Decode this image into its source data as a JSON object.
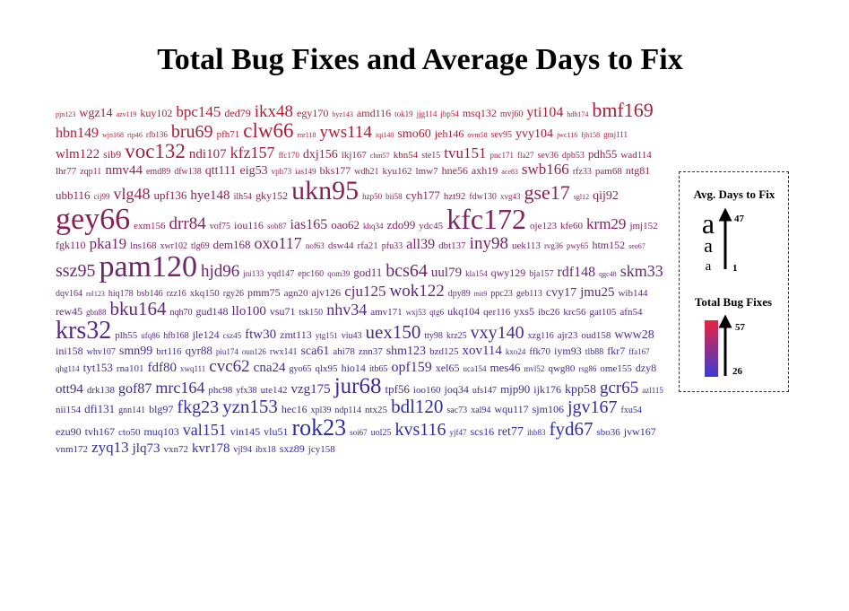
{
  "chart_data": {
    "type": "word-cloud",
    "title": "Total Bug Fixes and Average Days to Fix",
    "size_encoding": "Avg. Days to Fix",
    "color_encoding": "Total Bug Fixes",
    "size_range": [
      1,
      47
    ],
    "color_range": [
      26,
      57
    ],
    "color_low": "#3b3bd6",
    "color_high": "#e8233f",
    "legend_size_label": "Avg. Days to Fix",
    "legend_color_label": "Total Bug Fixes",
    "legend_size_max": "47",
    "legend_size_min": "1",
    "legend_color_max": "57",
    "legend_color_min": "26",
    "legend_glyph": "a",
    "legend_position": "right",
    "words": [
      [
        "pjn123",
        8,
        57
      ],
      [
        "wgz14",
        14,
        57
      ],
      [
        "azv119",
        8,
        57
      ],
      [
        "kuy102",
        12,
        57
      ],
      [
        "bpc145",
        17,
        57
      ],
      [
        "ded79",
        12,
        57
      ],
      [
        "ikx48",
        19,
        57
      ],
      [
        "egy170",
        12,
        57
      ],
      [
        "byz143",
        8,
        57
      ],
      [
        "amd116",
        12,
        57
      ],
      [
        "tok19",
        9,
        57
      ],
      [
        "jjg114",
        9,
        57
      ],
      [
        "jbp54",
        9,
        57
      ],
      [
        "msq132",
        12,
        57
      ],
      [
        "mvj60",
        10,
        57
      ],
      [
        "yti104",
        16,
        57
      ],
      [
        "hdh174",
        8,
        55
      ],
      [
        "bmf169",
        22,
        55
      ],
      [
        "hbn149",
        16,
        55
      ],
      [
        "wjn168",
        8,
        55
      ],
      [
        "rip46",
        8,
        55
      ],
      [
        "rfb136",
        9,
        55
      ],
      [
        "bru69",
        20,
        55
      ],
      [
        "pfh71",
        11,
        55
      ],
      [
        "clw66",
        23,
        55
      ],
      [
        "rnr118",
        8,
        55
      ],
      [
        "yws114",
        19,
        55
      ],
      [
        "iqi140",
        8,
        55
      ],
      [
        "smo60",
        14,
        55
      ],
      [
        "jeh146",
        12,
        55
      ],
      [
        "ovm58",
        8,
        55
      ],
      [
        "sev95",
        10,
        53
      ],
      [
        "yvy104",
        14,
        53
      ],
      [
        "jwc116",
        8,
        53
      ],
      [
        "fjh158",
        8,
        53
      ],
      [
        "gmj111",
        9,
        53
      ],
      [
        "wlm122",
        15,
        53
      ],
      [
        "sib9",
        12,
        53
      ],
      [
        "voc132",
        23,
        53
      ],
      [
        "ndi107",
        15,
        53
      ],
      [
        "kfz157",
        18,
        53
      ],
      [
        "ffc170",
        9,
        53
      ],
      [
        "dxj156",
        14,
        53
      ],
      [
        "ikj167",
        11,
        53
      ],
      [
        "chm57",
        8,
        53
      ],
      [
        "kbn54",
        11,
        53
      ],
      [
        "ste15",
        10,
        51
      ],
      [
        "tvu151",
        17,
        51
      ],
      [
        "pnc171",
        9,
        51
      ],
      [
        "fla27",
        9,
        51
      ],
      [
        "sev36",
        10,
        51
      ],
      [
        "dpb53",
        10,
        51
      ],
      [
        "pdh55",
        13,
        51
      ],
      [
        "wad114",
        11,
        51
      ],
      [
        "lhr77",
        11,
        51
      ],
      [
        "zqp11",
        10,
        51
      ],
      [
        "nmv44",
        15,
        51
      ],
      [
        "emd89",
        10,
        51
      ],
      [
        "dfw138",
        10,
        51
      ],
      [
        "qtt111",
        14,
        51
      ],
      [
        "eig53",
        14,
        51
      ],
      [
        "vph73",
        9,
        51
      ],
      [
        "ias149",
        9,
        49
      ],
      [
        "bks177",
        12,
        49
      ],
      [
        "wdh21",
        10,
        49
      ],
      [
        "kyu162",
        11,
        49
      ],
      [
        "lmw7",
        11,
        49
      ],
      [
        "hne56",
        12,
        49
      ],
      [
        "axh19",
        12,
        49
      ],
      [
        "ace83",
        8,
        49
      ],
      [
        "swb166",
        17,
        49
      ],
      [
        "rfz33",
        10,
        49
      ],
      [
        "pam68",
        11,
        49
      ],
      [
        "ntg81",
        12,
        49
      ],
      [
        "ubb116",
        13,
        49
      ],
      [
        "cij99",
        9,
        49
      ],
      [
        "vlg48",
        18,
        49
      ],
      [
        "upf136",
        13,
        49
      ],
      [
        "hye148",
        15,
        47
      ],
      [
        "ilh54",
        10,
        47
      ],
      [
        "gky152",
        12,
        47
      ],
      [
        "ukn95",
        30,
        47
      ],
      [
        "hzp50",
        9,
        47
      ],
      [
        "bii58",
        9,
        47
      ],
      [
        "cyh177",
        13,
        47
      ],
      [
        "hzt92",
        11,
        47
      ],
      [
        "fdw130",
        10,
        47
      ],
      [
        "xvg43",
        9,
        47
      ],
      [
        "gse17",
        22,
        47
      ],
      [
        "sgl12",
        8,
        47
      ],
      [
        "qij92",
        14,
        47
      ],
      [
        "gey66",
        34,
        47
      ],
      [
        "exm156",
        11,
        47
      ],
      [
        "drr84",
        19,
        45
      ],
      [
        "vof75",
        10,
        45
      ],
      [
        "iou116",
        12,
        45
      ],
      [
        "sob87",
        9,
        45
      ],
      [
        "ias165",
        16,
        45
      ],
      [
        "oao62",
        13,
        45
      ],
      [
        "khq34",
        9,
        45
      ],
      [
        "zdo99",
        13,
        45
      ],
      [
        "ydc45",
        11,
        45
      ],
      [
        "kfc172",
        32,
        45
      ],
      [
        "oje123",
        11,
        45
      ],
      [
        "kfe60",
        11,
        45
      ],
      [
        "krm29",
        17,
        45
      ],
      [
        "jmj152",
        11,
        45
      ],
      [
        "fgk110",
        12,
        45
      ],
      [
        "pka19",
        17,
        43
      ],
      [
        "lns168",
        11,
        43
      ],
      [
        "xwr102",
        10,
        43
      ],
      [
        "tlg69",
        10,
        43
      ],
      [
        "dem168",
        13,
        43
      ],
      [
        "oxo117",
        18,
        43
      ],
      [
        "nof63",
        9,
        43
      ],
      [
        "dsw44",
        11,
        43
      ],
      [
        "rfa21",
        11,
        43
      ],
      [
        "pfu33",
        10,
        43
      ],
      [
        "all39",
        16,
        43
      ],
      [
        "dbt137",
        11,
        43
      ],
      [
        "iny98",
        19,
        43
      ],
      [
        "uek113",
        11,
        43
      ],
      [
        "rvg36",
        9,
        43
      ],
      [
        "pwy65",
        9,
        43
      ],
      [
        "htm152",
        12,
        41
      ],
      [
        "seo67",
        8,
        41
      ],
      [
        "ssz95",
        20,
        41
      ],
      [
        "pam120",
        34,
        41
      ],
      [
        "hjd96",
        19,
        41
      ],
      [
        "jni133",
        9,
        41
      ],
      [
        "yqd147",
        10,
        41
      ],
      [
        "epc160",
        10,
        41
      ],
      [
        "qom39",
        9,
        41
      ],
      [
        "god11",
        13,
        41
      ],
      [
        "bcs64",
        20,
        41
      ],
      [
        "uul79",
        15,
        41
      ],
      [
        "kla154",
        9,
        41
      ],
      [
        "qwy129",
        12,
        41
      ],
      [
        "bja157",
        10,
        39
      ],
      [
        "rdf148",
        16,
        39
      ],
      [
        "qgc48",
        8,
        39
      ],
      [
        "skm33",
        18,
        39
      ],
      [
        "dqv164",
        10,
        39
      ],
      [
        "rol123",
        8,
        39
      ],
      [
        "hiq178",
        10,
        39
      ],
      [
        "bsb146",
        10,
        39
      ],
      [
        "rzz16",
        10,
        39
      ],
      [
        "xkq150",
        11,
        39
      ],
      [
        "rgy26",
        10,
        39
      ],
      [
        "pmm75",
        12,
        39
      ],
      [
        "agn20",
        11,
        39
      ],
      [
        "ajv126",
        12,
        39
      ],
      [
        "cju125",
        17,
        39
      ],
      [
        "wok122",
        19,
        37
      ],
      [
        "dpy89",
        10,
        37
      ],
      [
        "mit9",
        8,
        37
      ],
      [
        "ppc23",
        10,
        37
      ],
      [
        "geb113",
        10,
        37
      ],
      [
        "cvy17",
        14,
        37
      ],
      [
        "jmu25",
        15,
        37
      ],
      [
        "wib144",
        11,
        37
      ],
      [
        "rew45",
        12,
        37
      ],
      [
        "gbn88",
        9,
        37
      ],
      [
        "bku164",
        21,
        37
      ],
      [
        "nqh70",
        10,
        37
      ],
      [
        "gud148",
        12,
        37
      ],
      [
        "llo100",
        15,
        37
      ],
      [
        "vsu71",
        12,
        37
      ],
      [
        "tsk150",
        10,
        35
      ],
      [
        "nhv34",
        18,
        35
      ],
      [
        "amv171",
        11,
        35
      ],
      [
        "wxj53",
        9,
        35
      ],
      [
        "qtg6",
        9,
        35
      ],
      [
        "ukq104",
        12,
        35
      ],
      [
        "qer116",
        11,
        35
      ],
      [
        "yxs5",
        12,
        35
      ],
      [
        "ibc26",
        11,
        35
      ],
      [
        "krc56",
        11,
        35
      ],
      [
        "gat105",
        11,
        35
      ],
      [
        "afn54",
        11,
        35
      ],
      [
        "krs32",
        28,
        35
      ],
      [
        "plh55",
        11,
        35
      ],
      [
        "ufq86",
        9,
        35
      ],
      [
        "hfb168",
        10,
        35
      ],
      [
        "jle124",
        12,
        33
      ],
      [
        "csz45",
        9,
        33
      ],
      [
        "ftw30",
        15,
        33
      ],
      [
        "zmt113",
        12,
        33
      ],
      [
        "ytg151",
        9,
        33
      ],
      [
        "viu43",
        10,
        33
      ],
      [
        "uex150",
        21,
        33
      ],
      [
        "tty98",
        10,
        33
      ],
      [
        "krz25",
        10,
        33
      ],
      [
        "vxy140",
        20,
        33
      ],
      [
        "xzg116",
        10,
        33
      ],
      [
        "ajr23",
        11,
        33
      ],
      [
        "oud158",
        11,
        33
      ],
      [
        "www28",
        14,
        33
      ],
      [
        "ini158",
        12,
        33
      ],
      [
        "whv107",
        10,
        31
      ],
      [
        "smn99",
        14,
        31
      ],
      [
        "brt116",
        11,
        31
      ],
      [
        "qyr88",
        13,
        31
      ],
      [
        "piu174",
        9,
        31
      ],
      [
        "oun126",
        9,
        31
      ],
      [
        "rwx141",
        10,
        31
      ],
      [
        "sca61",
        14,
        31
      ],
      [
        "ahi78",
        11,
        31
      ],
      [
        "znn37",
        11,
        31
      ],
      [
        "shm123",
        14,
        31
      ],
      [
        "bzd125",
        11,
        31
      ],
      [
        "xov114",
        15,
        31
      ],
      [
        "kxo24",
        9,
        31
      ],
      [
        "ffk70",
        11,
        31
      ],
      [
        "iym93",
        12,
        31
      ],
      [
        "tlb88",
        10,
        30
      ],
      [
        "fkr7",
        12,
        30
      ],
      [
        "ffa167",
        9,
        30
      ],
      [
        "qhg114",
        9,
        30
      ],
      [
        "tyt153",
        13,
        30
      ],
      [
        "rna101",
        11,
        30
      ],
      [
        "fdf80",
        15,
        30
      ],
      [
        "xwq111",
        9,
        30
      ],
      [
        "cvc62",
        19,
        30
      ],
      [
        "cna24",
        15,
        30
      ],
      [
        "gyo65",
        10,
        30
      ],
      [
        "qlx95",
        11,
        30
      ],
      [
        "hio14",
        12,
        30
      ],
      [
        "itb65",
        10,
        30
      ],
      [
        "opf159",
        16,
        30
      ],
      [
        "xel65",
        12,
        30
      ],
      [
        "uca154",
        9,
        30
      ],
      [
        "mes46",
        13,
        29
      ],
      [
        "mvl52",
        9,
        29
      ],
      [
        "qwg80",
        11,
        29
      ],
      [
        "rsg86",
        9,
        29
      ],
      [
        "ome155",
        11,
        29
      ],
      [
        "dzy8",
        12,
        29
      ],
      [
        "ott94",
        15,
        29
      ],
      [
        "drk138",
        11,
        29
      ],
      [
        "gof87",
        16,
        29
      ],
      [
        "mrc164",
        18,
        29
      ],
      [
        "phc98",
        11,
        29
      ],
      [
        "yfx38",
        10,
        29
      ],
      [
        "ute142",
        11,
        29
      ],
      [
        "vzg175",
        15,
        29
      ],
      [
        "jur68",
        25,
        29
      ],
      [
        "tpf56",
        13,
        29
      ],
      [
        "ioo160",
        11,
        28
      ],
      [
        "joq34",
        12,
        28
      ],
      [
        "ufs147",
        10,
        28
      ],
      [
        "mjp90",
        13,
        28
      ],
      [
        "ijk176",
        12,
        28
      ],
      [
        "kpp58",
        14,
        28
      ],
      [
        "gcr65",
        19,
        28
      ],
      [
        "azl115",
        9,
        28
      ],
      [
        "nii154",
        11,
        28
      ],
      [
        "dfi131",
        13,
        28
      ],
      [
        "gnn141",
        10,
        28
      ],
      [
        "blg97",
        12,
        28
      ],
      [
        "fkg23",
        20,
        28
      ],
      [
        "yzn153",
        21,
        28
      ],
      [
        "hec16",
        12,
        28
      ],
      [
        "xpl39",
        10,
        27
      ],
      [
        "ndp114",
        10,
        27
      ],
      [
        "ntx25",
        11,
        27
      ],
      [
        "bdl120",
        21,
        27
      ],
      [
        "sac73",
        10,
        27
      ],
      [
        "xal94",
        10,
        27
      ],
      [
        "wqu117",
        12,
        27
      ],
      [
        "sjm106",
        12,
        27
      ],
      [
        "jgv167",
        20,
        27
      ],
      [
        "fxu54",
        10,
        27
      ],
      [
        "ezu90",
        12,
        27
      ],
      [
        "tvh167",
        12,
        27
      ],
      [
        "cto50",
        11,
        27
      ],
      [
        "muq103",
        12,
        27
      ],
      [
        "val151",
        18,
        27
      ],
      [
        "vin145",
        12,
        26
      ],
      [
        "vlu51",
        12,
        26
      ],
      [
        "rok23",
        26,
        26
      ],
      [
        "soi67",
        9,
        26
      ],
      [
        "uol25",
        10,
        26
      ],
      [
        "kvs116",
        20,
        26
      ],
      [
        "yjf47",
        9,
        26
      ],
      [
        "scs16",
        12,
        26
      ],
      [
        "ret77",
        14,
        26
      ],
      [
        "ihb83",
        9,
        26
      ],
      [
        "fyd67",
        21,
        26
      ],
      [
        "sbo36",
        11,
        26
      ],
      [
        "jvw167",
        12,
        26
      ],
      [
        "vnm172",
        11,
        26
      ],
      [
        "zyq13",
        17,
        26
      ],
      [
        "jlq73",
        15,
        26
      ],
      [
        "vxn72",
        11,
        26
      ],
      [
        "kvr178",
        15,
        26
      ],
      [
        "vjl94",
        10,
        26
      ],
      [
        "ibx18",
        10,
        26
      ],
      [
        "sxz89",
        12,
        26
      ],
      [
        "jcy158",
        11,
        26
      ]
    ]
  }
}
